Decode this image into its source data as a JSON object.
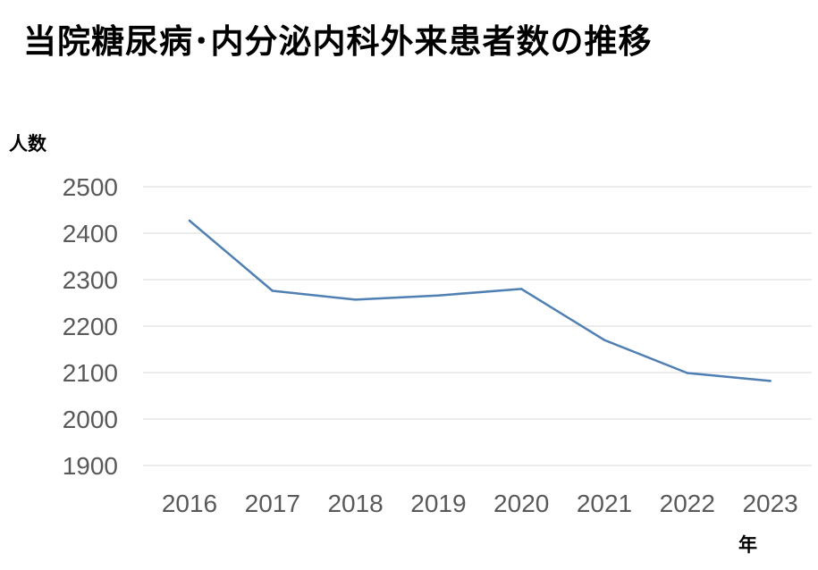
{
  "chart_data": {
    "type": "line",
    "title": "当院糖尿病･内分泌内科外来患者数の推移",
    "ylabel": "人数",
    "xlabel": "年",
    "categories": [
      "2016",
      "2017",
      "2018",
      "2019",
      "2020",
      "2021",
      "2022",
      "2023"
    ],
    "series": [
      {
        "values": [
          2427,
          2276,
          2257,
          2266,
          2280,
          2170,
          2099,
          2082
        ]
      }
    ],
    "yticks": [
      "1900",
      "2000",
      "2100",
      "2200",
      "2300",
      "2400",
      "2500"
    ],
    "ylim": [
      1900,
      2500
    ],
    "grid": true,
    "legend": "none",
    "line_color": "#4F7FB3",
    "grid_color": "#D9D9D9"
  }
}
